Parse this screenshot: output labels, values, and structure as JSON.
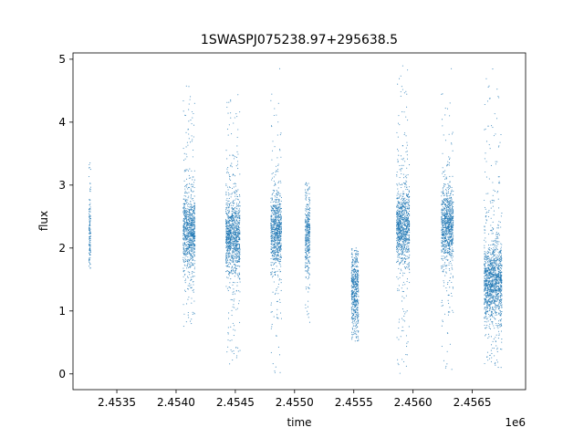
{
  "chart_data": {
    "type": "scatter",
    "title": "1SWASPJ075238.97+295638.5",
    "xlabel": "time",
    "ylabel": "flux",
    "x_offset_label": "1e6",
    "xlim": [
      2453130,
      2456950
    ],
    "ylim": [
      -0.25,
      5.1
    ],
    "x_ticks": [
      2453500,
      2454000,
      2454500,
      2455000,
      2455500,
      2456000,
      2456500
    ],
    "x_tick_labels": [
      "2.4535",
      "2.4540",
      "2.4545",
      "2.4550",
      "2.4555",
      "2.4560",
      "2.4565"
    ],
    "y_ticks": [
      0,
      1,
      2,
      3,
      4,
      5
    ],
    "y_tick_labels": [
      "0",
      "1",
      "2",
      "3",
      "4",
      "5"
    ],
    "grid": false,
    "legend": "none",
    "series_color": "#1f77b4",
    "clusters": [
      {
        "x_start": 2453265,
        "x_end": 2453280,
        "y_center": 2.2,
        "y_min": 1.65,
        "y_max": 3.4
      },
      {
        "x_start": 2454060,
        "x_end": 2454160,
        "y_center": 2.25,
        "y_min": 0.75,
        "y_max": 4.7
      },
      {
        "x_start": 2454420,
        "x_end": 2454540,
        "y_center": 2.2,
        "y_min": 0.15,
        "y_max": 4.5
      },
      {
        "x_start": 2454800,
        "x_end": 2454890,
        "y_center": 2.25,
        "y_min": 0.0,
        "y_max": 4.9
      },
      {
        "x_start": 2455090,
        "x_end": 2455130,
        "y_center": 2.25,
        "y_min": 0.8,
        "y_max": 3.05
      },
      {
        "x_start": 2455480,
        "x_end": 2455540,
        "y_center": 1.3,
        "y_min": 0.5,
        "y_max": 2.0
      },
      {
        "x_start": 2455860,
        "x_end": 2455970,
        "y_center": 2.35,
        "y_min": 0.0,
        "y_max": 4.9
      },
      {
        "x_start": 2456240,
        "x_end": 2456340,
        "y_center": 2.35,
        "y_min": 0.05,
        "y_max": 4.9
      },
      {
        "x_start": 2456600,
        "x_end": 2456750,
        "y_center": 1.45,
        "y_min": 0.1,
        "y_max": 4.85
      }
    ]
  }
}
